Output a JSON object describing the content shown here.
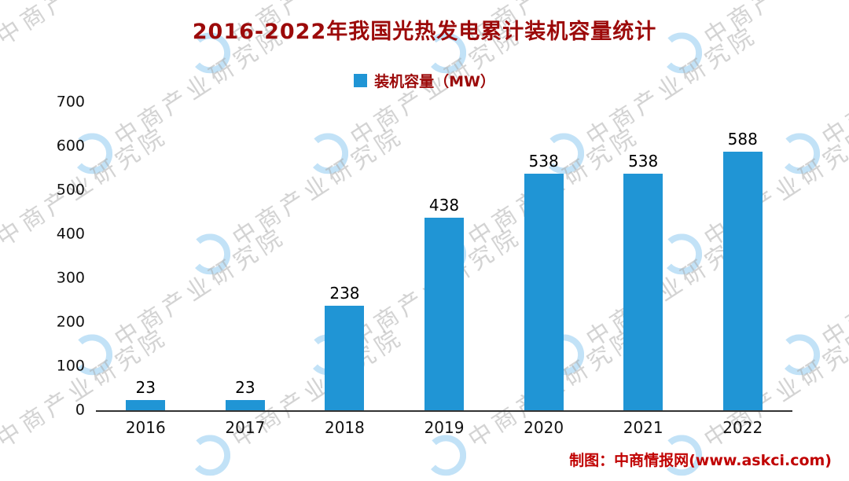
{
  "title": "2016-2022年我国光热发电累计装机容量统计",
  "legend": {
    "label": "装机容量（MW）"
  },
  "watermark": {
    "text": "中商产业研究院"
  },
  "credit": "制图：中商情报网(www.askci.com)",
  "colors": {
    "bar": "#2095d5",
    "title": "#9c0a0a",
    "credit": "#c00000",
    "axis": "#333333"
  },
  "chart_data": {
    "type": "bar",
    "title": "2016-2022年我国光热发电累计装机容量统计",
    "series_name": "装机容量（MW）",
    "categories": [
      "2016",
      "2017",
      "2018",
      "2019",
      "2020",
      "2021",
      "2022"
    ],
    "values": [
      23,
      23,
      238,
      438,
      538,
      538,
      588
    ],
    "xlabel": "",
    "ylabel": "",
    "ylim": [
      0,
      700
    ],
    "yticks": [
      0,
      100,
      200,
      300,
      400,
      500,
      600,
      700
    ],
    "grid": false,
    "legend_position": "top",
    "data_labels": true
  }
}
